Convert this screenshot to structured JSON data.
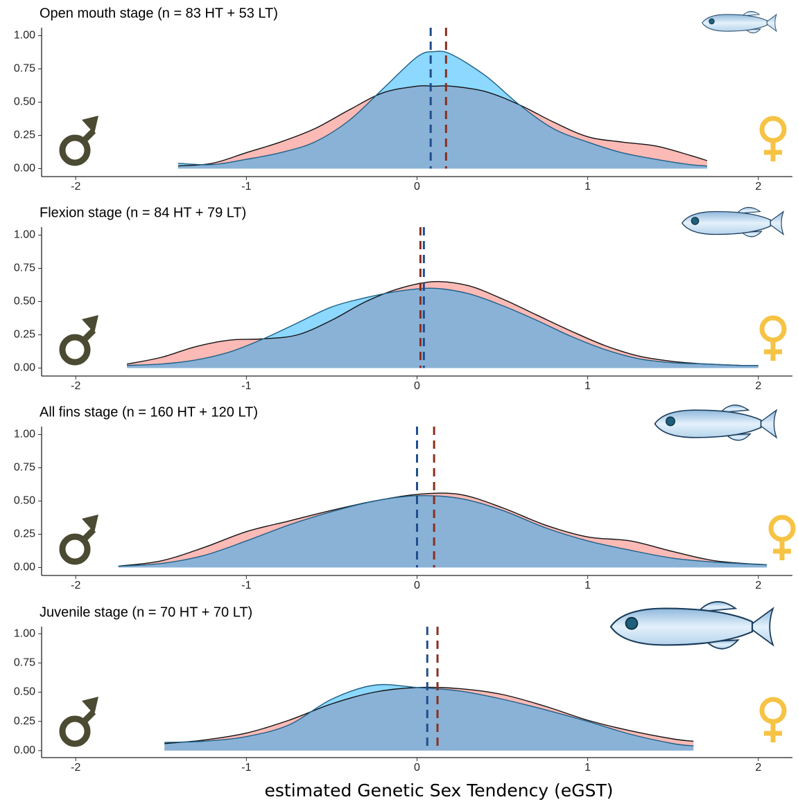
{
  "chart_data": [
    {
      "type": "density",
      "title": "Open mouth stage (n = 83 HT + 53 LT)",
      "x": [
        -1.4,
        -1.2,
        -1.0,
        -0.8,
        -0.6,
        -0.4,
        -0.2,
        0,
        0.1,
        0.2,
        0.4,
        0.6,
        0.8,
        1.0,
        1.2,
        1.4,
        1.6,
        1.7
      ],
      "series": [
        {
          "color": "#f8766d",
          "mean_color": "#8b2e1e",
          "mean": 0.17,
          "values": [
            0.02,
            0.04,
            0.12,
            0.2,
            0.3,
            0.44,
            0.57,
            0.62,
            0.62,
            0.62,
            0.58,
            0.48,
            0.35,
            0.24,
            0.2,
            0.17,
            0.1,
            0.06
          ]
        },
        {
          "color": "#00a9ff",
          "mean_color": "#1f4e8c",
          "mean": 0.08,
          "values": [
            0.04,
            0.03,
            0.07,
            0.12,
            0.2,
            0.36,
            0.6,
            0.84,
            0.88,
            0.86,
            0.7,
            0.48,
            0.3,
            0.2,
            0.12,
            0.07,
            0.03,
            0.02
          ]
        }
      ],
      "xlim": [
        -2.2,
        2.2
      ],
      "ylim": [
        -0.06,
        1.06
      ],
      "xticks": [
        -2,
        -1,
        0,
        1,
        2
      ],
      "yticks": [
        {
          "value": 0,
          "label": "0.00"
        },
        {
          "value": 0.25,
          "label": "0.25"
        },
        {
          "value": 0.5,
          "label": "0.50"
        },
        {
          "value": 0.75,
          "label": "0.75"
        },
        {
          "value": 1,
          "label": "1.00"
        }
      ]
    },
    {
      "type": "density",
      "title": "Flexion stage (n = 84 HT + 79 LT)",
      "x": [
        -1.7,
        -1.5,
        -1.3,
        -1.1,
        -0.9,
        -0.7,
        -0.5,
        -0.3,
        -0.1,
        0.1,
        0.3,
        0.5,
        0.7,
        0.9,
        1.1,
        1.3,
        1.5,
        1.7,
        1.9,
        2.0
      ],
      "series": [
        {
          "color": "#f8766d",
          "mean_color": "#8b2e1e",
          "mean": 0.02,
          "values": [
            0.03,
            0.08,
            0.16,
            0.21,
            0.22,
            0.25,
            0.36,
            0.5,
            0.6,
            0.65,
            0.62,
            0.52,
            0.4,
            0.28,
            0.17,
            0.09,
            0.05,
            0.03,
            0.02,
            0.02
          ]
        },
        {
          "color": "#00a9ff",
          "mean_color": "#1f4e8c",
          "mean": 0.04,
          "values": [
            0.02,
            0.03,
            0.06,
            0.12,
            0.22,
            0.34,
            0.46,
            0.53,
            0.58,
            0.6,
            0.56,
            0.47,
            0.36,
            0.24,
            0.14,
            0.07,
            0.04,
            0.03,
            0.02,
            0.02
          ]
        }
      ],
      "xlim": [
        -2.2,
        2.2
      ],
      "ylim": [
        -0.06,
        1.06
      ],
      "xticks": [
        -2,
        -1,
        0,
        1,
        2
      ],
      "yticks": [
        {
          "value": 0,
          "label": "0.00"
        },
        {
          "value": 0.25,
          "label": "0.25"
        },
        {
          "value": 0.5,
          "label": "0.50"
        },
        {
          "value": 0.75,
          "label": "0.75"
        },
        {
          "value": 1,
          "label": "1.00"
        }
      ]
    },
    {
      "type": "density",
      "title": "All fins stage (n = 160 HT + 120 LT)",
      "x": [
        -1.75,
        -1.5,
        -1.25,
        -1.0,
        -0.75,
        -0.5,
        -0.25,
        0,
        0.25,
        0.5,
        0.75,
        1.0,
        1.25,
        1.5,
        1.75,
        2.05
      ],
      "series": [
        {
          "color": "#f8766d",
          "mean_color": "#8b2e1e",
          "mean": 0.1,
          "values": [
            0.01,
            0.05,
            0.15,
            0.27,
            0.35,
            0.43,
            0.5,
            0.55,
            0.55,
            0.45,
            0.32,
            0.23,
            0.2,
            0.12,
            0.05,
            0.02
          ]
        },
        {
          "color": "#00a9ff",
          "mean_color": "#1f4e8c",
          "mean": 0.0,
          "values": [
            0.01,
            0.03,
            0.09,
            0.2,
            0.32,
            0.42,
            0.5,
            0.54,
            0.52,
            0.43,
            0.3,
            0.2,
            0.13,
            0.07,
            0.04,
            0.02
          ]
        }
      ],
      "xlim": [
        -2.2,
        2.2
      ],
      "ylim": [
        -0.06,
        1.06
      ],
      "xticks": [
        -2,
        -1,
        0,
        1,
        2
      ],
      "yticks": [
        {
          "value": 0,
          "label": "0.00"
        },
        {
          "value": 0.25,
          "label": "0.25"
        },
        {
          "value": 0.5,
          "label": "0.50"
        },
        {
          "value": 0.75,
          "label": "0.75"
        },
        {
          "value": 1,
          "label": "1.00"
        }
      ]
    },
    {
      "type": "density",
      "title": "Juvenile stage (n = 70 HT + 70 LT)",
      "xlabel": "estimated Genetic Sex Tendency (eGST)",
      "x": [
        -1.48,
        -1.25,
        -1.0,
        -0.75,
        -0.5,
        -0.25,
        0,
        0.25,
        0.5,
        0.75,
        1.0,
        1.25,
        1.5,
        1.62
      ],
      "series": [
        {
          "color": "#f8766d",
          "mean_color": "#8b2e1e",
          "mean": 0.12,
          "values": [
            0.06,
            0.09,
            0.15,
            0.26,
            0.4,
            0.5,
            0.54,
            0.53,
            0.48,
            0.38,
            0.26,
            0.17,
            0.1,
            0.08
          ]
        },
        {
          "color": "#00a9ff",
          "mean_color": "#1f4e8c",
          "mean": 0.06,
          "values": [
            0.07,
            0.08,
            0.12,
            0.22,
            0.44,
            0.56,
            0.54,
            0.51,
            0.44,
            0.35,
            0.25,
            0.14,
            0.06,
            0.04
          ]
        }
      ],
      "xlim": [
        -2.2,
        2.2
      ],
      "ylim": [
        -0.06,
        1.06
      ],
      "xticks": [
        -2,
        -1,
        0,
        1,
        2
      ],
      "yticks": [
        {
          "value": 0,
          "label": "0.00"
        },
        {
          "value": 0.25,
          "label": "0.25"
        },
        {
          "value": 0.5,
          "label": "0.50"
        },
        {
          "value": 0.75,
          "label": "0.75"
        },
        {
          "value": 1,
          "label": "1.00"
        }
      ]
    }
  ]
}
